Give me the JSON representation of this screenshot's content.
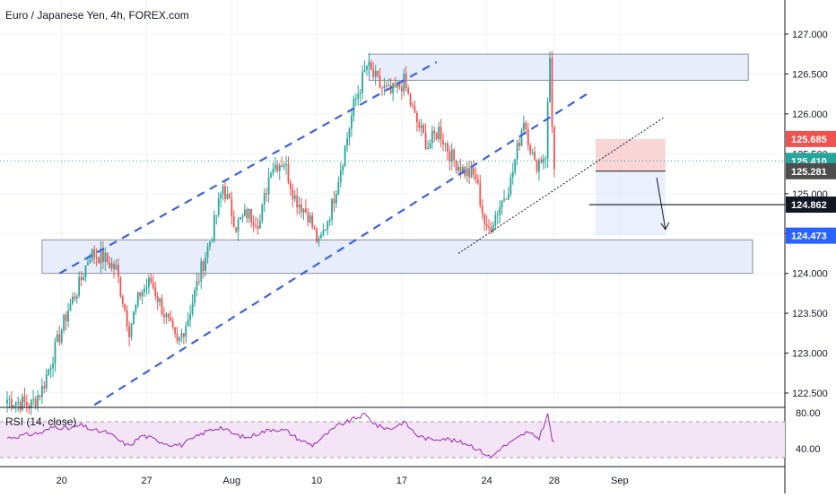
{
  "header": {
    "title": "Euro / Japanese Yen, 4h, FOREX.com"
  },
  "colors": {
    "bull": "#26a69a",
    "bear": "#ef5350",
    "channel": "#3d63d8",
    "zone_fill": "#e8edfb",
    "zone_border": "#8a8f99",
    "rsi_line": "#9c27b0",
    "rsi_band": "#f3e5f5",
    "last_price": "#26a69a",
    "stop_badge": "#ef5350",
    "entry_badge": "#4d4d4d",
    "target_badge": "#2962ff",
    "level_badge": "#131722"
  },
  "chart_data": {
    "type": "candlestick",
    "symbol": "Euro / Japanese Yen",
    "interval": "4h",
    "source": "FOREX.com",
    "y_ticks": [
      "127.000",
      "126.500",
      "126.000",
      "125.500",
      "125.000",
      "124.500",
      "124.000",
      "123.500",
      "123.000",
      "122.500"
    ],
    "y_tick_values": [
      127.0,
      126.5,
      126.0,
      125.5,
      125.0,
      124.5,
      124.0,
      123.5,
      123.0,
      122.5
    ],
    "ylim": [
      122.3,
      127.2
    ],
    "x_ticks": [
      "20",
      "27",
      "Aug",
      "10",
      "17",
      "24",
      "28",
      "Sep"
    ],
    "x_tick_index": [
      25,
      64,
      103,
      142,
      181,
      220,
      251,
      281
    ],
    "n_bars": 252,
    "anchors": [
      [
        0,
        122.42
      ],
      [
        6,
        122.38
      ],
      [
        11,
        122.35
      ],
      [
        16,
        122.55
      ],
      [
        22,
        123.05
      ],
      [
        28,
        123.55
      ],
      [
        33,
        123.85
      ],
      [
        38,
        124.25
      ],
      [
        44,
        124.2
      ],
      [
        50,
        124.05
      ],
      [
        56,
        123.3
      ],
      [
        61,
        123.75
      ],
      [
        66,
        123.9
      ],
      [
        72,
        123.5
      ],
      [
        78,
        123.1
      ],
      [
        83,
        123.45
      ],
      [
        89,
        124.05
      ],
      [
        94,
        124.5
      ],
      [
        99,
        125.1
      ],
      [
        105,
        124.6
      ],
      [
        110,
        124.75
      ],
      [
        116,
        124.65
      ],
      [
        121,
        125.35
      ],
      [
        127,
        125.4
      ],
      [
        132,
        124.95
      ],
      [
        138,
        124.75
      ],
      [
        143,
        124.35
      ],
      [
        149,
        124.85
      ],
      [
        154,
        125.45
      ],
      [
        159,
        126.1
      ],
      [
        165,
        126.6
      ],
      [
        171,
        126.35
      ],
      [
        176,
        126.25
      ],
      [
        182,
        126.4
      ],
      [
        187,
        125.95
      ],
      [
        193,
        125.6
      ],
      [
        198,
        125.8
      ],
      [
        204,
        125.45
      ],
      [
        209,
        125.3
      ],
      [
        215,
        125.2
      ],
      [
        220,
        124.5
      ],
      [
        226,
        124.85
      ],
      [
        231,
        125.15
      ],
      [
        237,
        125.95
      ],
      [
        242,
        125.35
      ],
      [
        247,
        125.5
      ],
      [
        249,
        126.7
      ],
      [
        250,
        125.9
      ],
      [
        251,
        125.31
      ]
    ],
    "rsi": {
      "label": "RSI (14, close)",
      "ticks": [
        "80.00",
        "40.00"
      ],
      "tick_values": [
        80,
        40
      ],
      "band": [
        70,
        30
      ],
      "ylim": [
        25,
        85
      ],
      "anchors": [
        [
          0,
          52
        ],
        [
          8,
          55
        ],
        [
          16,
          58
        ],
        [
          22,
          65
        ],
        [
          28,
          62
        ],
        [
          34,
          66
        ],
        [
          40,
          60
        ],
        [
          46,
          58
        ],
        [
          52,
          48
        ],
        [
          56,
          43
        ],
        [
          62,
          55
        ],
        [
          68,
          50
        ],
        [
          74,
          45
        ],
        [
          80,
          44
        ],
        [
          86,
          52
        ],
        [
          92,
          60
        ],
        [
          98,
          64
        ],
        [
          104,
          56
        ],
        [
          110,
          52
        ],
        [
          116,
          58
        ],
        [
          122,
          62
        ],
        [
          128,
          60
        ],
        [
          134,
          50
        ],
        [
          140,
          44
        ],
        [
          146,
          55
        ],
        [
          152,
          66
        ],
        [
          158,
          72
        ],
        [
          164,
          78
        ],
        [
          170,
          65
        ],
        [
          176,
          62
        ],
        [
          182,
          70
        ],
        [
          188,
          55
        ],
        [
          194,
          50
        ],
        [
          200,
          52
        ],
        [
          206,
          48
        ],
        [
          212,
          45
        ],
        [
          218,
          36
        ],
        [
          222,
          30
        ],
        [
          226,
          40
        ],
        [
          232,
          48
        ],
        [
          238,
          58
        ],
        [
          244,
          52
        ],
        [
          248,
          78
        ],
        [
          250,
          50
        ],
        [
          251,
          48
        ]
      ]
    },
    "price_labels": [
      {
        "text": "125.685",
        "value": 125.685,
        "kind": "stop"
      },
      {
        "text": "125.410",
        "value": 125.41,
        "kind": "last"
      },
      {
        "text": "125.281",
        "value": 125.281,
        "kind": "entry"
      },
      {
        "text": "124.862",
        "value": 124.862,
        "kind": "level"
      },
      {
        "text": "124.473",
        "value": 124.473,
        "kind": "target"
      }
    ],
    "zones": [
      {
        "name": "resistance",
        "from_bar": 166,
        "to_bar": 340,
        "y_low": 126.42,
        "y_high": 126.75
      },
      {
        "name": "support",
        "from_bar": 16,
        "to_bar": 342,
        "y_low": 124.0,
        "y_high": 124.42
      }
    ],
    "channel_lines": [
      {
        "name": "channel-upper",
        "x1": 24,
        "y1": 124.0,
        "x2": 197,
        "y2": 126.65
      },
      {
        "name": "channel-lower",
        "x1": 40,
        "y1": 122.35,
        "x2": 266,
        "y2": 126.25
      }
    ],
    "dotted_line": {
      "x1": 207,
      "y1": 124.25,
      "x2": 301,
      "y2": 125.95
    },
    "horizontal_level": {
      "value": 124.862,
      "from_bar": 267
    },
    "position": {
      "from_bar": 270,
      "to_bar": 302,
      "stop": 125.685,
      "entry": 125.281,
      "target": 124.473
    },
    "forecast_arrow": {
      "x1": 298,
      "y1": 125.2,
      "x2": 302,
      "y2": 124.55
    }
  }
}
